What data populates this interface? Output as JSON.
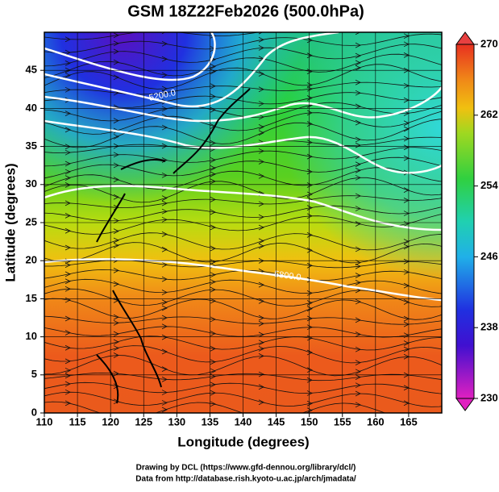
{
  "chart_data": {
    "type": "field-map",
    "title": "GSM 18Z22Feb2026 (500.0hPa)",
    "x_label": "Longitude (degrees)",
    "y_label": "Latitude  (degrees)",
    "xlim": [
      110,
      170
    ],
    "ylim": [
      0,
      50
    ],
    "xticks": [
      110,
      115,
      120,
      125,
      130,
      135,
      140,
      145,
      150,
      155,
      160,
      165
    ],
    "yticks": [
      0,
      5,
      10,
      15,
      20,
      25,
      30,
      35,
      40,
      45
    ],
    "grid": true,
    "colorbar": {
      "lim": [
        230,
        270
      ],
      "ticks": [
        230,
        238,
        246,
        254,
        262,
        270
      ]
    },
    "contour_labels": [
      "5200.0",
      "5800.0"
    ],
    "footer": [
      "Drawing by DCL (https://www.gfd-dennou.org/library/dcl/)",
      "Data from http://database.rish.kyoto-u.ac.jp/arch/jmadata/"
    ]
  }
}
